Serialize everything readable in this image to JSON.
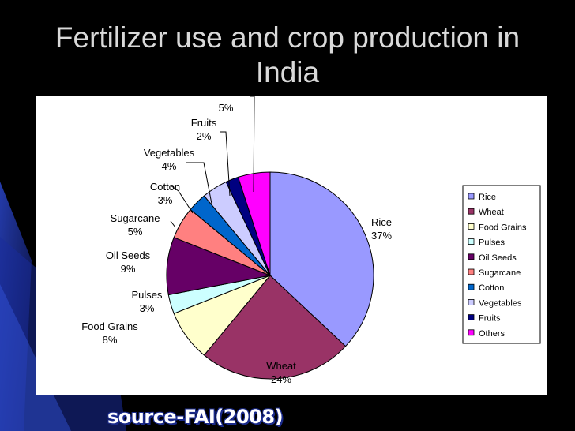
{
  "slide": {
    "title": "Fertilizer use and crop production in India",
    "source": "source-FAI(2008)"
  },
  "chart_data": {
    "type": "pie",
    "title": "",
    "slices": [
      {
        "name": "Rice",
        "value": 37,
        "label": "37%",
        "color": "#9999ff"
      },
      {
        "name": "Wheat",
        "value": 24,
        "label": "24%",
        "color": "#993366"
      },
      {
        "name": "Food Grains",
        "value": 8,
        "label": "8%",
        "color": "#ffffcc"
      },
      {
        "name": "Pulses",
        "value": 3,
        "label": "3%",
        "color": "#ccffff"
      },
      {
        "name": "Oil Seeds",
        "value": 9,
        "label": "9%",
        "color": "#660066"
      },
      {
        "name": "Sugarcane",
        "value": 5,
        "label": "5%",
        "color": "#ff8080"
      },
      {
        "name": "Cotton",
        "value": 3,
        "label": "3%",
        "color": "#0066cc"
      },
      {
        "name": "Vegetables",
        "value": 4,
        "label": "4%",
        "color": "#ccccff"
      },
      {
        "name": "Fruits",
        "value": 2,
        "label": "2%",
        "color": "#000080"
      },
      {
        "name": "Others",
        "value": 5,
        "label": "5%",
        "color": "#ff00ff"
      }
    ],
    "legend_position": "right"
  }
}
